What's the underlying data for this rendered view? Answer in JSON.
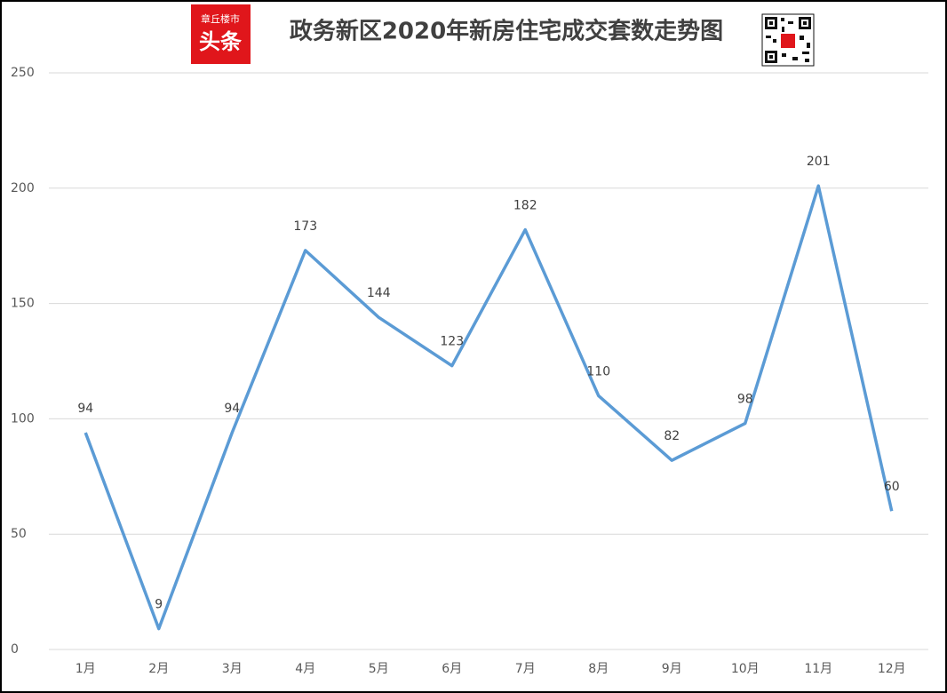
{
  "chart_data": {
    "type": "line",
    "title": "政务新区2020年新房住宅成交套数走势图",
    "logo_text": [
      "章丘楼市",
      "头条"
    ],
    "categories": [
      "1月",
      "2月",
      "3月",
      "4月",
      "5月",
      "6月",
      "7月",
      "8月",
      "9月",
      "10月",
      "11月",
      "12月"
    ],
    "series": [
      {
        "color": "#5b9bd5",
        "values": [
          94,
          9,
          94,
          173,
          144,
          123,
          182,
          110,
          82,
          98,
          201,
          60
        ]
      }
    ],
    "ylim": [
      0,
      250
    ],
    "yticks": [
      0,
      50,
      100,
      150,
      200,
      250
    ],
    "grid": true
  }
}
